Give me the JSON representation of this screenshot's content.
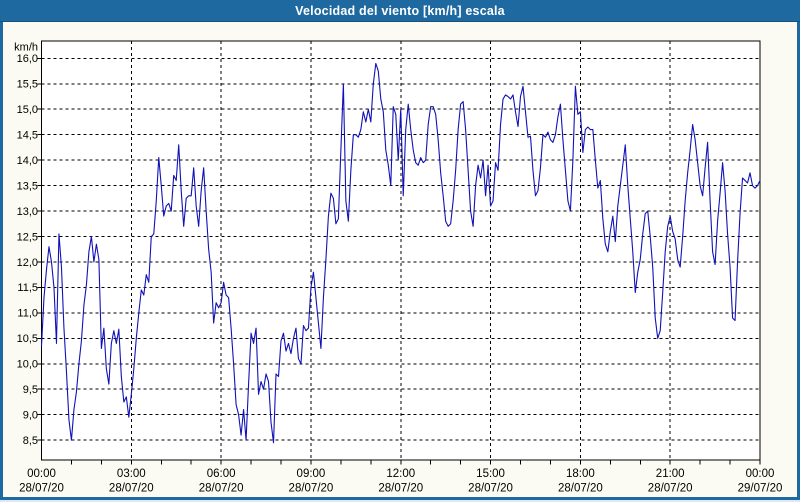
{
  "window": {
    "title": "Velocidad del viento [km/h] escala"
  },
  "colors": {
    "frame": "#1e69a0",
    "titlebar": "#1e69a0",
    "title_text": "#ffffff",
    "content_bg": "#fbfbf3",
    "plot_bg": "#ffffff",
    "grid": "#000000",
    "axis_text": "#000000",
    "line": "#1111b8"
  },
  "chart_data": {
    "type": "line",
    "title": "Velocidad del viento [km/h] escala",
    "y_unit_label": "km/h",
    "xlabel": "",
    "ylabel": "",
    "grid": "dashed",
    "legend": "none",
    "ylim": [
      8.11,
      16.34
    ],
    "y_tick_values": [
      16.0,
      15.5,
      15.0,
      14.5,
      14.0,
      13.5,
      13.0,
      12.5,
      12.0,
      11.5,
      11.0,
      10.5,
      10.0,
      9.5,
      9.0,
      8.5
    ],
    "y_tick_labels": [
      "16,0",
      "15,5",
      "15,0",
      "14,5",
      "14,0",
      "13,5",
      "13,0",
      "12,5",
      "12,0",
      "11,5",
      "11,0",
      "10,5",
      "10,0",
      "9,5",
      "9,0",
      "8,5"
    ],
    "x_total_minutes": 1440,
    "x_gridline_minutes": [
      180,
      360,
      540,
      720,
      900,
      1080,
      1260
    ],
    "x_minor_tick_step_min": 60,
    "x_tick_minutes": [
      0,
      180,
      360,
      540,
      720,
      900,
      1080,
      1260,
      1440
    ],
    "x_tick_times": [
      "00:00",
      "03:00",
      "06:00",
      "09:00",
      "12:00",
      "15:00",
      "18:00",
      "21:00",
      "00:00"
    ],
    "x_tick_dates": [
      "28/07/20",
      "28/07/20",
      "28/07/20",
      "28/07/20",
      "28/07/20",
      "28/07/20",
      "28/07/20",
      "28/07/20",
      "29/07/20"
    ],
    "series": [
      {
        "name": "Velocidad del viento [km/h]",
        "color": "#1111b8",
        "x_start_min": 0,
        "x_step_min": 5,
        "values": [
          10.35,
          11.3,
          11.85,
          12.3,
          12.0,
          11.5,
          10.4,
          12.55,
          11.9,
          10.7,
          9.85,
          8.9,
          8.5,
          9.1,
          9.45,
          10.0,
          10.45,
          11.15,
          11.55,
          12.2,
          12.5,
          12.0,
          12.35,
          12.05,
          10.3,
          10.7,
          9.9,
          9.6,
          10.4,
          10.65,
          10.4,
          10.68,
          9.75,
          9.25,
          9.35,
          8.95,
          9.4,
          9.9,
          10.5,
          11.0,
          11.45,
          11.35,
          11.75,
          11.6,
          12.5,
          12.55,
          13.2,
          14.05,
          13.5,
          12.9,
          13.1,
          13.15,
          13.0,
          13.7,
          13.6,
          14.3,
          13.4,
          12.7,
          13.25,
          13.3,
          13.3,
          13.85,
          13.1,
          12.7,
          13.4,
          13.85,
          13.0,
          12.25,
          11.8,
          10.8,
          11.2,
          11.1,
          11.2,
          11.6,
          11.35,
          11.3,
          10.7,
          10.0,
          9.2,
          9.0,
          8.6,
          9.1,
          8.5,
          9.6,
          10.6,
          10.4,
          10.7,
          9.4,
          9.65,
          9.5,
          9.8,
          9.65,
          8.85,
          8.45,
          9.8,
          9.75,
          10.45,
          10.6,
          10.25,
          10.4,
          10.2,
          10.5,
          10.7,
          10.1,
          10.0,
          10.75,
          10.65,
          10.7,
          11.5,
          11.8,
          11.3,
          10.8,
          10.3,
          11.3,
          12.05,
          12.9,
          13.35,
          13.25,
          12.75,
          12.85,
          14.2,
          15.5,
          13.2,
          12.8,
          13.8,
          14.5,
          14.5,
          14.45,
          14.6,
          14.95,
          14.75,
          15.0,
          14.75,
          15.5,
          15.9,
          15.75,
          15.2,
          14.95,
          14.2,
          13.9,
          13.5,
          15.05,
          14.9,
          14.0,
          15.0,
          13.3,
          14.6,
          15.1,
          14.6,
          14.2,
          13.95,
          13.9,
          14.05,
          13.95,
          14.0,
          14.7,
          15.05,
          15.05,
          14.9,
          14.4,
          13.75,
          13.3,
          12.8,
          12.7,
          12.75,
          13.2,
          13.8,
          14.6,
          15.1,
          15.15,
          14.6,
          13.8,
          13.0,
          12.7,
          13.5,
          13.9,
          13.65,
          14.0,
          13.3,
          13.9,
          13.1,
          13.2,
          13.95,
          13.8,
          14.7,
          15.2,
          15.28,
          15.25,
          15.2,
          15.28,
          14.95,
          14.66,
          15.25,
          15.45,
          14.95,
          14.45,
          14.47,
          13.8,
          13.3,
          13.4,
          13.85,
          14.5,
          14.45,
          14.55,
          14.4,
          14.35,
          14.5,
          14.85,
          15.1,
          14.4,
          13.8,
          13.2,
          13.0,
          14.0,
          15.45,
          14.9,
          14.95,
          14.15,
          14.6,
          14.65,
          14.6,
          14.6,
          14.0,
          13.45,
          13.6,
          12.85,
          12.35,
          12.2,
          12.6,
          12.9,
          12.4,
          13.1,
          13.5,
          13.9,
          14.3,
          13.5,
          12.85,
          12.2,
          11.4,
          11.8,
          12.05,
          12.55,
          12.95,
          13.0,
          12.5,
          11.9,
          10.9,
          10.5,
          10.65,
          11.4,
          12.2,
          12.7,
          12.9,
          12.6,
          12.45,
          12.05,
          11.9,
          12.5,
          13.2,
          13.75,
          14.2,
          14.7,
          14.4,
          13.95,
          13.5,
          13.3,
          13.85,
          14.35,
          13.2,
          12.2,
          11.95,
          12.8,
          13.35,
          13.95,
          13.4,
          12.55,
          11.9,
          10.9,
          10.85,
          12.0,
          12.95,
          13.65,
          13.6,
          13.55,
          13.75,
          13.5,
          13.45,
          13.5,
          13.6
        ]
      }
    ]
  }
}
